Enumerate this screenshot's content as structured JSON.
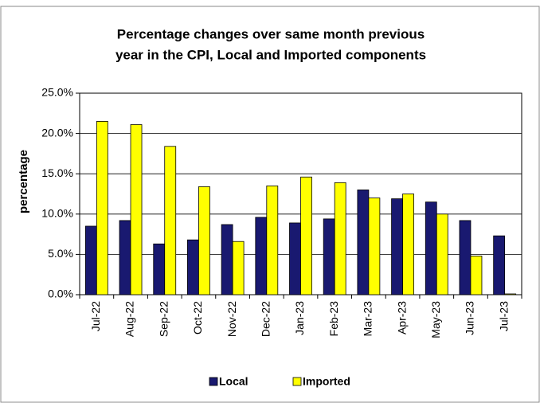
{
  "chart_data": {
    "type": "bar",
    "title": [
      "Percentage changes over same month previous",
      "year in the CPI, Local and Imported components"
    ],
    "ylabel": "percentage",
    "categories": [
      "Jul-22",
      "Aug-22",
      "Sep-22",
      "Oct-22",
      "Nov-22",
      "Dec-22",
      "Jan-23",
      "Feb-23",
      "Mar-23",
      "Apr-23",
      "May-23",
      "Jun-23",
      "Jul-23"
    ],
    "series": [
      {
        "name": "Local",
        "color": "#191970",
        "values": [
          8.5,
          9.2,
          6.3,
          6.8,
          8.7,
          9.6,
          8.9,
          9.4,
          13.0,
          11.9,
          11.5,
          9.2,
          7.3
        ]
      },
      {
        "name": "Imported",
        "color": "#ffff00",
        "values": [
          21.5,
          21.1,
          18.4,
          13.4,
          6.6,
          13.5,
          14.6,
          13.9,
          12.0,
          12.5,
          10.0,
          4.8,
          0.1
        ]
      }
    ],
    "ylim": [
      0,
      25
    ],
    "yticks": [
      {
        "value": 0,
        "label": "0.0%"
      },
      {
        "value": 5,
        "label": "5.0%"
      },
      {
        "value": 10,
        "label": "10.0%"
      },
      {
        "value": 15,
        "label": "15.0%"
      },
      {
        "value": 20,
        "label": "20.0%"
      },
      {
        "value": 25,
        "label": "25.0%"
      }
    ],
    "grid": true,
    "legend": "bottom"
  }
}
